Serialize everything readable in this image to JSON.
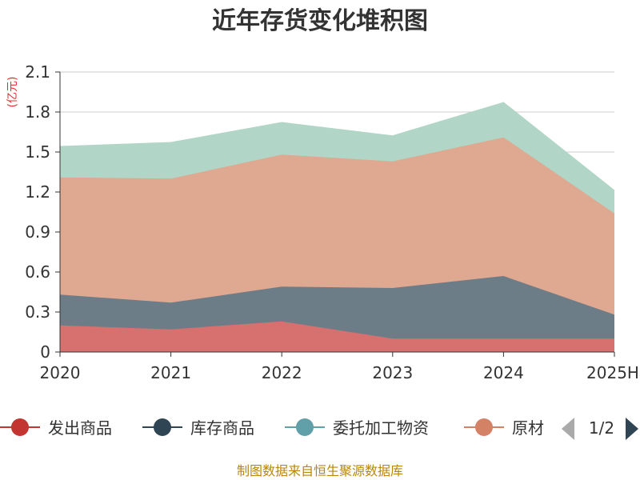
{
  "chart_data": {
    "type": "area",
    "stacked": true,
    "title": "近年存货变化堆积图",
    "unit_label": "(亿元)",
    "categories": [
      "2020",
      "2021",
      "2022",
      "2023",
      "2024",
      "2025H"
    ],
    "ylim": [
      0,
      2.1
    ],
    "yticks": [
      "0",
      "0.3",
      "0.6",
      "0.9",
      "1.2",
      "1.5",
      "1.8",
      "2.1"
    ],
    "grid": true,
    "series": [
      {
        "name": "发出商品",
        "values": [
          0.2,
          0.17,
          0.23,
          0.1,
          0.1,
          0.1
        ],
        "color": "#c23531"
      },
      {
        "name": "库存商品",
        "values": [
          0.23,
          0.2,
          0.26,
          0.38,
          0.47,
          0.18
        ],
        "color": "#2f4554"
      },
      {
        "name": "原材料",
        "values": [
          0.88,
          0.93,
          0.99,
          0.95,
          1.04,
          0.76
        ],
        "color": "#d48265"
      },
      {
        "name": "委托加工物资",
        "values": [
          0.23,
          0.27,
          0.24,
          0.19,
          0.26,
          0.17
        ],
        "color": "#61a0a8"
      }
    ],
    "legend": {
      "position": "bottom",
      "items": [
        {
          "name": "发出商品",
          "color": "#c23531"
        },
        {
          "name": "库存商品",
          "color": "#2f4554"
        },
        {
          "name": "委托加工物资",
          "color": "#61a0a8"
        },
        {
          "name": "原材",
          "color": "#d48265"
        }
      ],
      "page": "1/2"
    }
  },
  "footer_text": "制图数据来自恒生聚源数据库",
  "colors": {
    "area_fill": {
      "发出商品": "#d7716f",
      "库存商品": "#6d7d88",
      "原材料": "#dfa891",
      "委托加工物资": "#b1d6c7"
    },
    "grid": "#cccccc",
    "axis": "#333333",
    "pager_active": "#2f4554",
    "pager_inactive": "#aaaaaa"
  }
}
